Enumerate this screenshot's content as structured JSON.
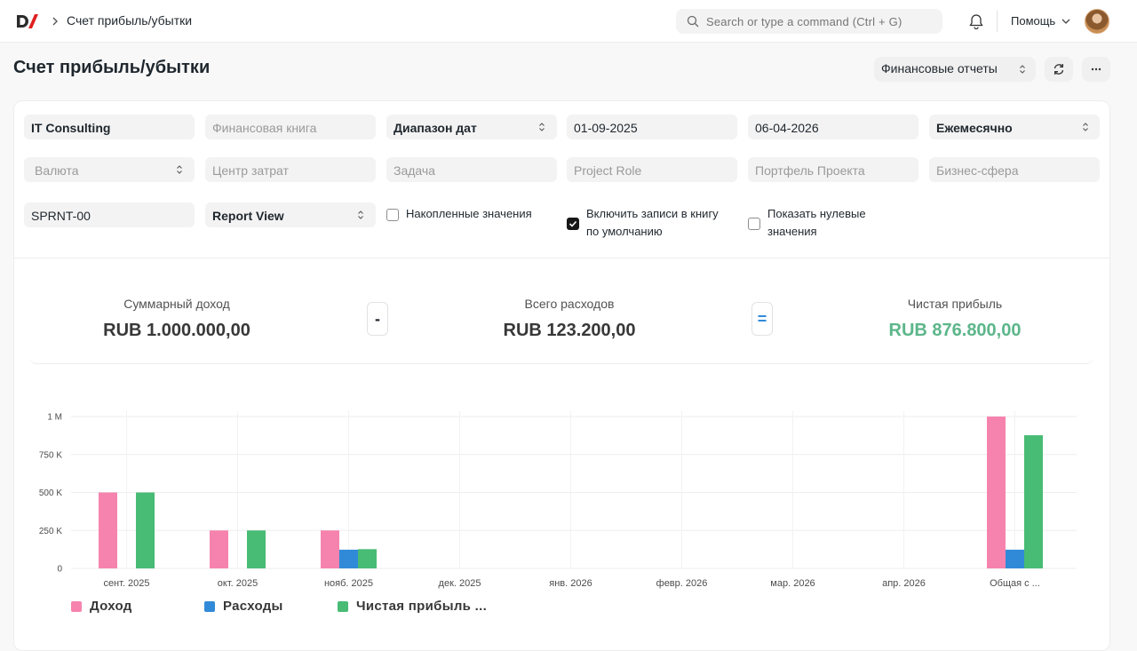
{
  "navbar": {
    "breadcrumb": "Счет прибыль/убытки",
    "search_placeholder": "Search or type a command (Ctrl + G)",
    "help_label": "Помощь"
  },
  "page": {
    "title": "Счет прибыль/убытки",
    "reports_button": "Финансовые отчеты"
  },
  "filters": {
    "company": "IT Consulting",
    "finance_book_placeholder": "Финансовая книга",
    "period_type": "Диапазон дат",
    "from_date": "01-09-2025",
    "to_date": "06-04-2026",
    "periodicity": "Ежемесячно",
    "currency_placeholder": "Валюта",
    "cost_center_placeholder": "Центр затрат",
    "task_placeholder": "Задача",
    "project_role_placeholder": "Project Role",
    "project_portfolio_placeholder": "Портфель Проекта",
    "business_area_placeholder": "Бизнес-сфера",
    "project": "SPRNT-00",
    "view": "Report View",
    "accumulated_label": "Накопленные значения",
    "accumulated_checked": false,
    "include_default_line1": "Включить записи в книгу",
    "include_default_line2": "по умолчанию",
    "include_default_checked": true,
    "show_zero_line1": "Показать нулевые",
    "show_zero_line2": "значения",
    "show_zero_checked": false
  },
  "summary": {
    "income_label": "Суммарный доход",
    "income_value": "RUB 1.000.000,00",
    "minus_op": "-",
    "expense_label": "Всего расходов",
    "expense_value": "RUB 123.200,00",
    "equals_op": "=",
    "profit_label": "Чистая прибыль",
    "profit_value": "RUB 876.800,00",
    "profit_color": "#5cb68a"
  },
  "chart_data": {
    "type": "bar",
    "categories": [
      "сент. 2025",
      "окт. 2025",
      "нояб. 2025",
      "дек. 2025",
      "янв. 2026",
      "февр. 2026",
      "мар. 2026",
      "апр. 2026",
      "Общая с ..."
    ],
    "series": [
      {
        "name": "Доход",
        "color": "#f683ae",
        "values": [
          500000,
          250000,
          250000,
          0,
          0,
          0,
          0,
          0,
          1000000
        ]
      },
      {
        "name": "Расходы",
        "color": "#318ad8",
        "values": [
          0,
          0,
          123200,
          0,
          0,
          0,
          0,
          0,
          123200
        ]
      },
      {
        "name": "Чистая прибыль ...",
        "color": "#48bb74",
        "values": [
          500000,
          250000,
          126800,
          0,
          0,
          0,
          0,
          0,
          876800
        ]
      }
    ],
    "y_ticks": [
      {
        "value": 0,
        "label": "0"
      },
      {
        "value": 250000,
        "label": "250 K"
      },
      {
        "value": 500000,
        "label": "500 K"
      },
      {
        "value": 750000,
        "label": "750 K"
      },
      {
        "value": 1000000,
        "label": "1 M"
      }
    ],
    "ylim": [
      0,
      1000000
    ],
    "grid": true,
    "legend": "bottom-left"
  }
}
